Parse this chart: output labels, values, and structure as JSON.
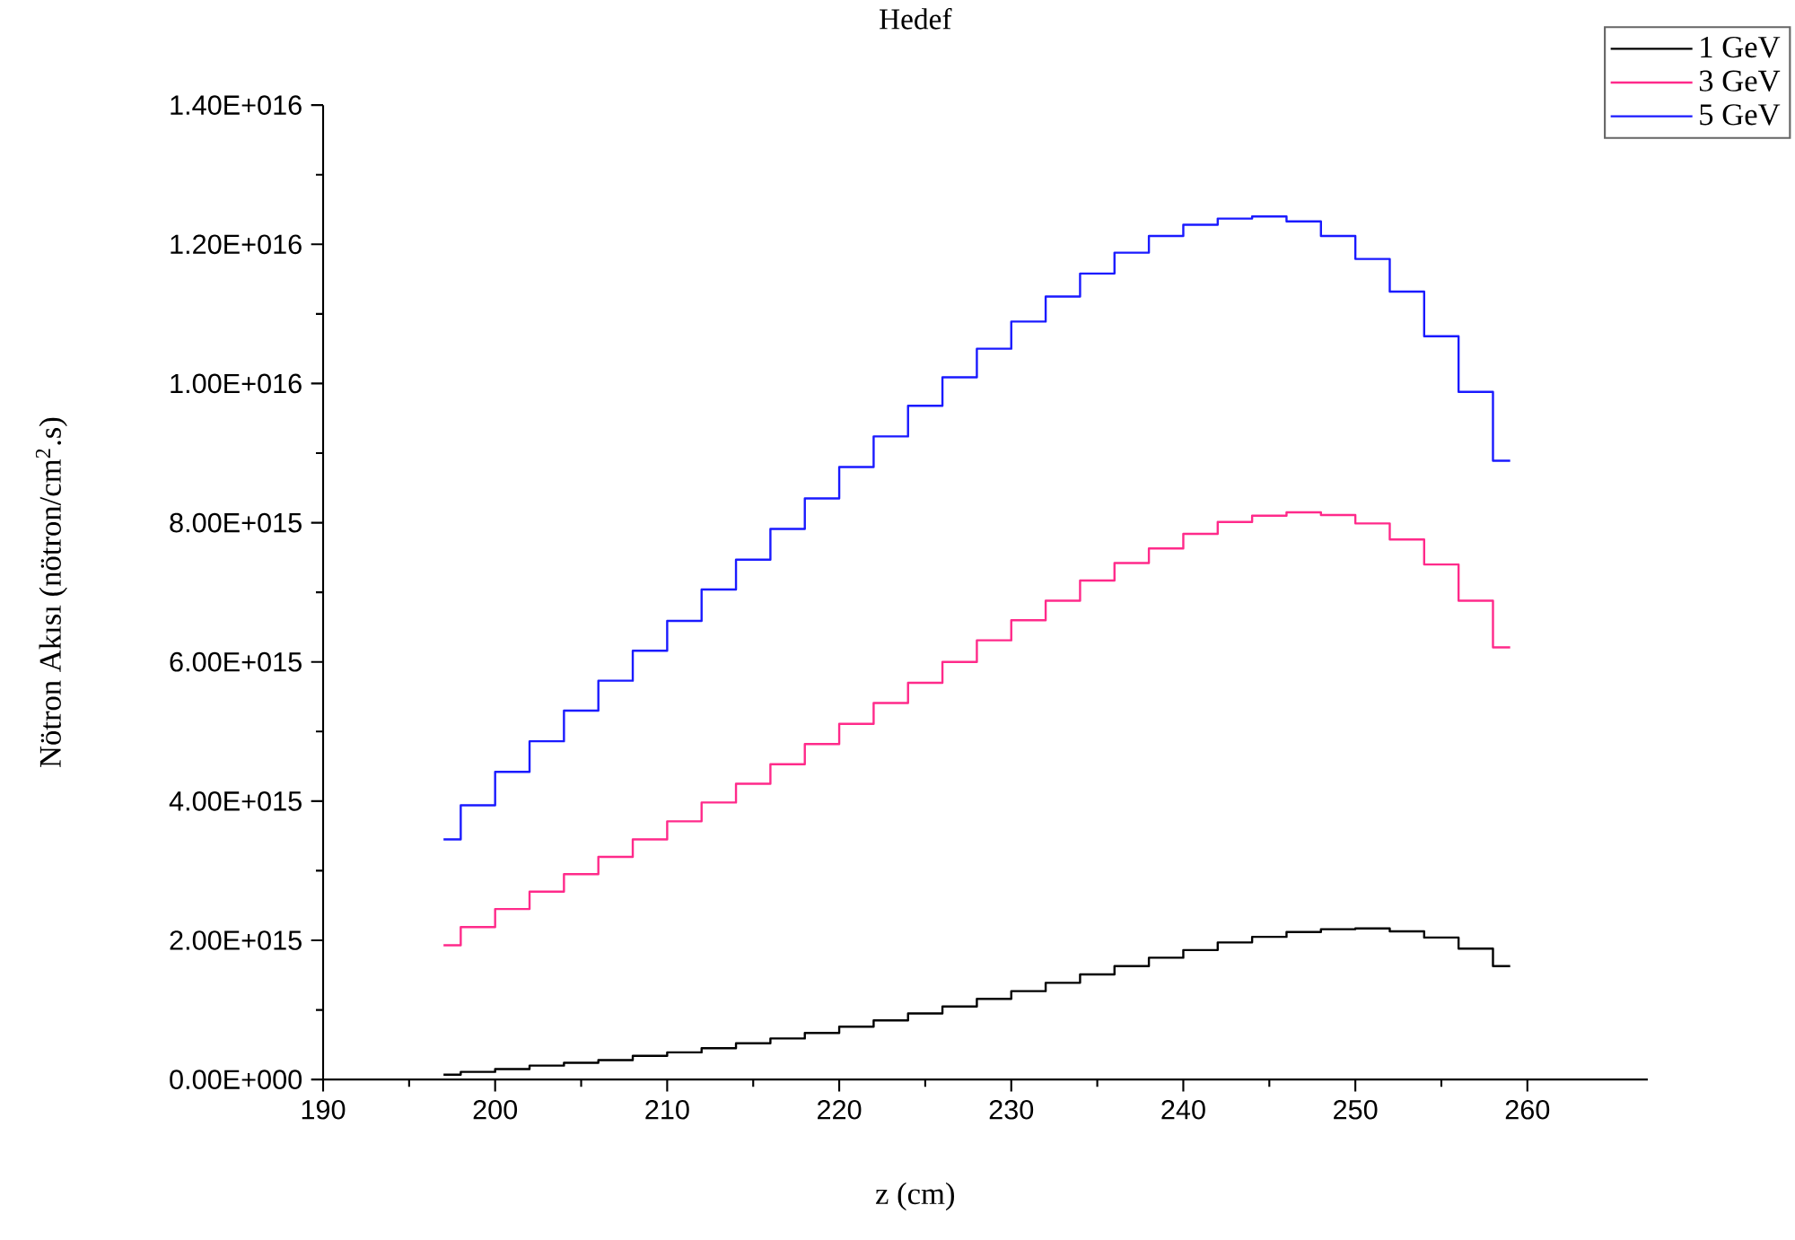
{
  "chart_data": {
    "type": "step",
    "title": "Hedef",
    "xlabel": "z (cm)",
    "ylabel": "Nötron Akısı (nötron/cm$^{2}$.s)",
    "x": [
      197,
      198,
      200,
      202,
      204,
      206,
      208,
      210,
      212,
      214,
      216,
      218,
      220,
      222,
      224,
      226,
      228,
      230,
      232,
      234,
      236,
      238,
      240,
      242,
      244,
      246,
      248,
      250,
      252,
      254,
      256,
      258,
      259
    ],
    "series": [
      {
        "name": "1 GeV",
        "color": "#000000",
        "values": [
          70000000000000.0,
          110000000000000.0,
          150000000000000.0,
          200000000000000.0,
          240000000000000.0,
          280000000000000.0,
          340000000000000.0,
          390000000000000.0,
          450000000000000.0,
          520000000000000.0,
          590000000000000.0,
          670000000000000.0,
          760000000000000.0,
          850000000000000.0,
          950000000000000.0,
          1050000000000000.0,
          1160000000000000.0,
          1270000000000000.0,
          1390000000000000.0,
          1510000000000000.0,
          1630000000000000.0,
          1750000000000000.0,
          1860000000000000.0,
          1970000000000000.0,
          2050000000000000.0,
          2120000000000000.0,
          2160000000000000.0,
          2170000000000000.0,
          2130000000000000.0,
          2040000000000000.0,
          1880000000000000.0,
          1630000000000000.0,
          1630000000000000.0
        ]
      },
      {
        "name": "3 GeV",
        "color": "#ff2a8a",
        "values": [
          1930000000000000.0,
          2190000000000000.0,
          2450000000000000.0,
          2700000000000000.0,
          2950000000000000.0,
          3200000000000000.0,
          3450000000000000.0,
          3710000000000000.0,
          3980000000000000.0,
          4250000000000000.0,
          4530000000000000.0,
          4820000000000000.0,
          5110000000000000.0,
          5410000000000000.0,
          5700000000000000.0,
          6000000000000000.0,
          6310000000000000.0,
          6600000000000000.0,
          6880000000000000.0,
          7170000000000000.0,
          7420000000000000.0,
          7630000000000000.0,
          7840000000000000.0,
          8010000000000000.0,
          8100000000000000.0,
          8150000000000000.0,
          8110000000000000.0,
          7990000000000000.0,
          7760000000000000.0,
          7400000000000000.0,
          6880000000000000.0,
          6210000000000000.0,
          6210000000000000.0
        ]
      },
      {
        "name": "5 GeV",
        "color": "#1a1aff",
        "values": [
          3450000000000000.0,
          3940000000000000.0,
          4420000000000000.0,
          4860000000000000.0,
          5300000000000000.0,
          5730000000000000.0,
          6160000000000000.0,
          6590000000000000.0,
          7040000000000000.0,
          7470000000000000.0,
          7910000000000000.0,
          8350000000000000.0,
          8800000000000000.0,
          9240000000000000.0,
          9680000000000000.0,
          1.009e+16,
          1.05e+16,
          1.089e+16,
          1.125e+16,
          1.158e+16,
          1.188e+16,
          1.212e+16,
          1.228e+16,
          1.237e+16,
          1.24e+16,
          1.233e+16,
          1.212e+16,
          1.179e+16,
          1.132e+16,
          1.068e+16,
          9880000000000000.0,
          8890000000000000.0,
          8890000000000000.0
        ]
      }
    ],
    "xlim": [
      190,
      267
    ],
    "xticks": [
      190,
      200,
      210,
      220,
      230,
      240,
      250,
      260
    ],
    "ylim": [
      0,
      1.4e+16
    ],
    "yticks": [
      {
        "value": 0,
        "label": "0.00E+000"
      },
      {
        "value": 2000000000000000.0,
        "label": "2.00E+015"
      },
      {
        "value": 4000000000000000.0,
        "label": "4.00E+015"
      },
      {
        "value": 6000000000000000.0,
        "label": "6.00E+015"
      },
      {
        "value": 8000000000000000.0,
        "label": "8.00E+015"
      },
      {
        "value": 1e+16,
        "label": "1.00E+016"
      },
      {
        "value": 1.2e+16,
        "label": "1.20E+016"
      },
      {
        "value": 1.4e+16,
        "label": "1.40E+016"
      }
    ],
    "legend": "top right",
    "grid": false,
    "marker": "none",
    "line_style": "solid"
  }
}
